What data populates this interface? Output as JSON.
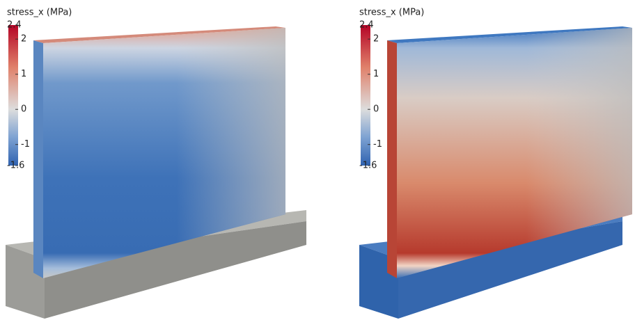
{
  "panels": [
    {
      "colorbar": {
        "title": "stress_x (MPa)",
        "range": [
          -1.6,
          2.4
        ],
        "ticks": [
          2.4,
          2,
          1,
          0,
          -1,
          -1.6
        ]
      }
    },
    {
      "colorbar": {
        "title": "stress_x (MPa)",
        "range": [
          -1.6,
          2.4
        ],
        "ticks": [
          2.4,
          2,
          1,
          0,
          -1,
          -1.6
        ]
      }
    }
  ]
}
